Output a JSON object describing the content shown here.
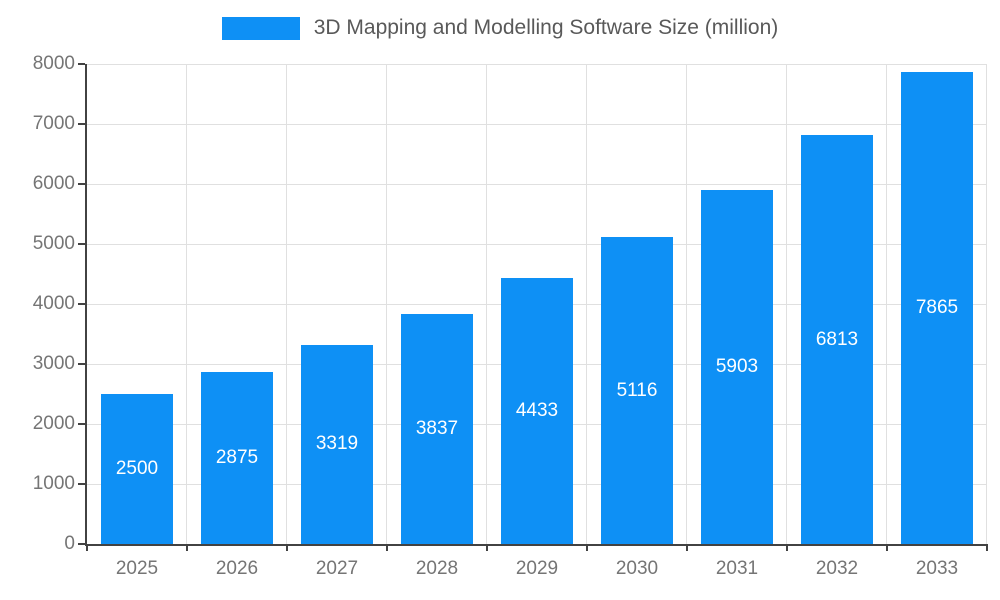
{
  "chart_data": {
    "type": "bar",
    "title": "3D Mapping and Modelling Software Size (million)",
    "categories": [
      "2025",
      "2026",
      "2027",
      "2028",
      "2029",
      "2030",
      "2031",
      "2032",
      "2033"
    ],
    "values": [
      2500,
      2875,
      3319,
      3837,
      4433,
      5116,
      5903,
      6813,
      7865
    ],
    "xlabel": "",
    "ylabel": "",
    "ylim": [
      0,
      8000
    ],
    "ytick_step": 1000,
    "grid": true,
    "legend_position": "top-center",
    "value_labels": "inside-center",
    "colors": {
      "bar": "#0e90f5",
      "value_label": "#ffffff",
      "axis_tick_label": "#757575",
      "title_text": "#595959",
      "gridline": "#e0e0e0",
      "axis_line": "#424242"
    }
  }
}
